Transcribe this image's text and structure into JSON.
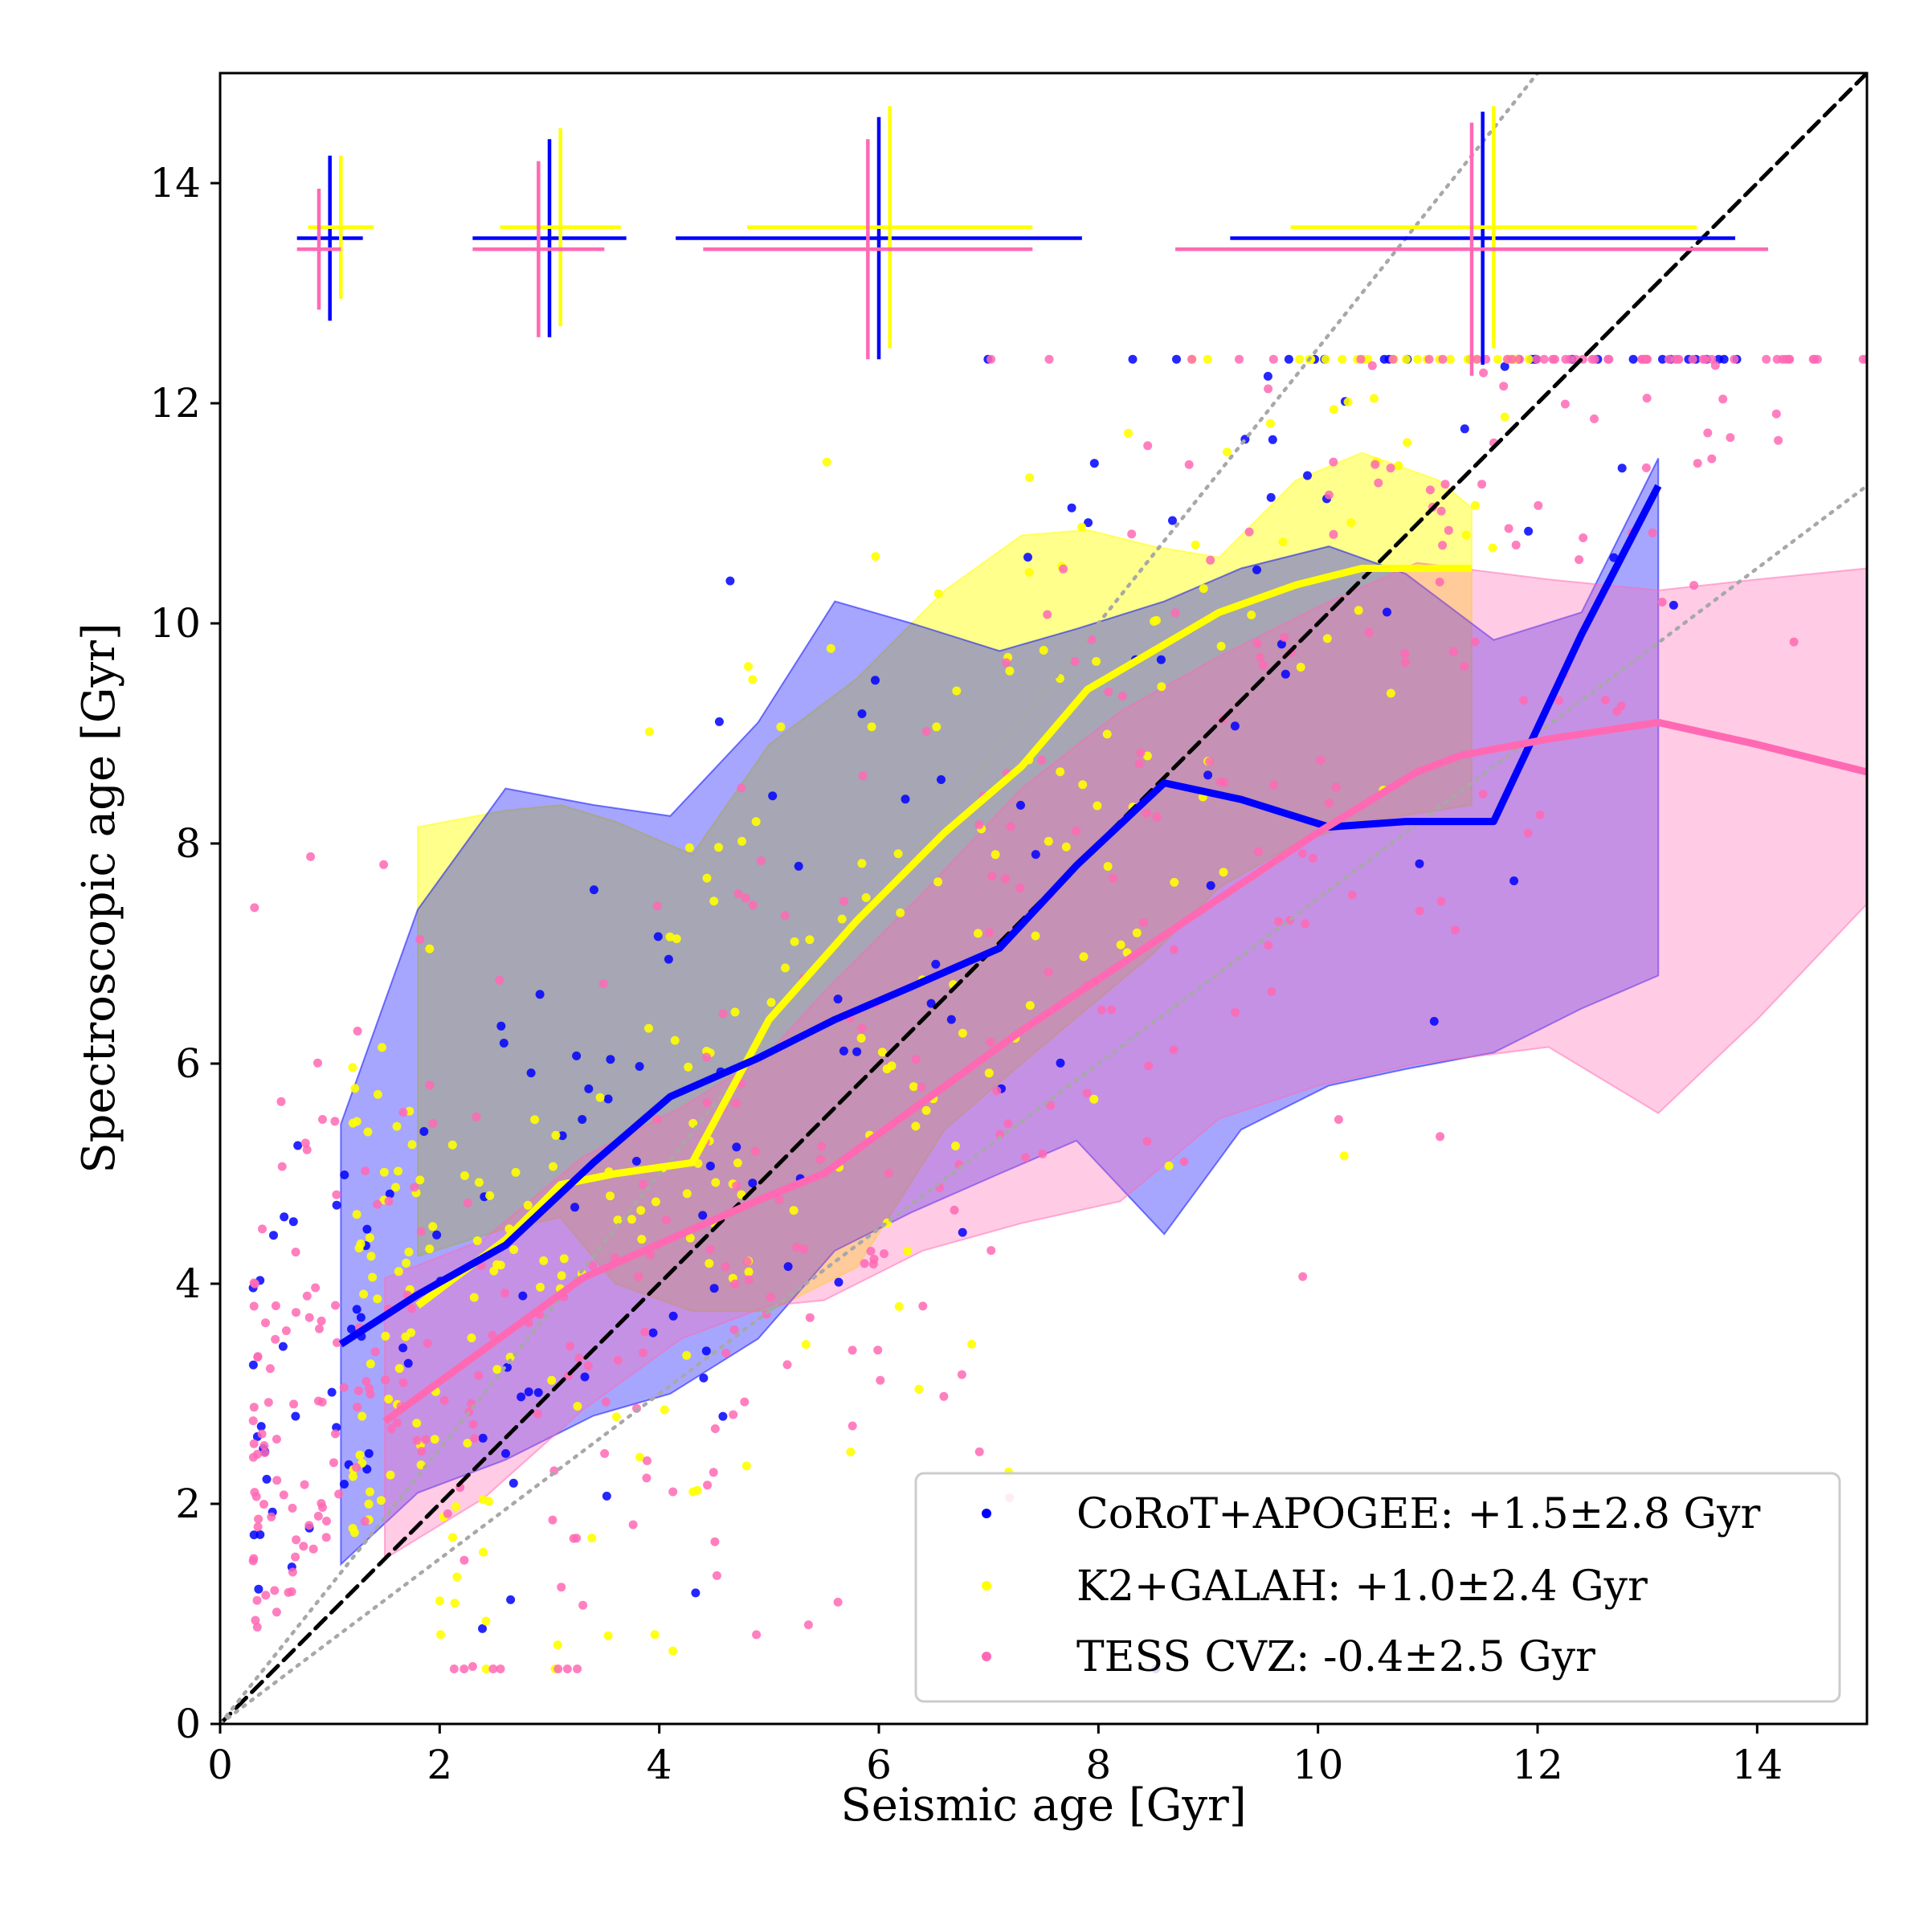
{
  "chart_data": {
    "type": "scatter",
    "title": "",
    "xlabel": "Seismic age [Gyr]",
    "ylabel": "Spectroscopic age [Gyr]",
    "xlim": [
      0,
      15
    ],
    "ylim": [
      0,
      15
    ],
    "xticks": [
      0,
      2,
      4,
      6,
      8,
      10,
      12,
      14
    ],
    "yticks": [
      0,
      2,
      4,
      6,
      8,
      10,
      12,
      14
    ],
    "xtick_labels": [
      "0",
      "2",
      "4",
      "6",
      "8",
      "10",
      "12",
      "14"
    ],
    "ytick_labels": [
      "0",
      "2",
      "4",
      "6",
      "8",
      "10",
      "12",
      "14"
    ],
    "legend_position": "lower-right",
    "reference_lines": [
      {
        "name": "one-to-one",
        "style": "dashed",
        "color": "#000000",
        "slope": 1.0
      },
      {
        "name": "upper-bound",
        "style": "dotted",
        "color": "#a8a8a8",
        "slope": 1.25
      },
      {
        "name": "lower-bound",
        "style": "dotted",
        "color": "#a8a8a8",
        "slope": 0.75
      }
    ],
    "series": [
      {
        "name": "CoRoT+APOGEE",
        "legend_label": "CoRoT+APOGEE: +1.5±2.8 Gyr",
        "color": "#0000ff",
        "median_x": [
          1.1,
          1.8,
          2.6,
          3.4,
          4.1,
          4.9,
          5.6,
          6.3,
          7.1,
          7.8,
          8.6,
          9.3,
          10.1,
          10.8,
          11.6,
          12.4,
          13.1
        ],
        "median_y": [
          3.45,
          3.9,
          4.35,
          5.1,
          5.7,
          6.05,
          6.4,
          6.7,
          7.05,
          7.8,
          8.55,
          8.4,
          8.15,
          8.2,
          8.2,
          9.9,
          11.25
        ],
        "band_upper": [
          5.45,
          7.4,
          8.5,
          8.35,
          8.25,
          9.1,
          10.2,
          10.0,
          9.75,
          9.95,
          10.2,
          10.5,
          10.7,
          10.45,
          9.85,
          10.1,
          11.5
        ],
        "band_lower": [
          1.45,
          2.1,
          2.4,
          2.8,
          3.0,
          3.5,
          4.3,
          4.65,
          5.0,
          5.3,
          4.45,
          5.4,
          5.8,
          5.95,
          6.1,
          6.5,
          6.8
        ],
        "error_cross": [
          {
            "x": 1.0,
            "y": 13.5,
            "xerr": [
              0.3,
              0.3
            ],
            "yerr": [
              0.75,
              0.75
            ]
          },
          {
            "x": 3.0,
            "y": 13.5,
            "xerr": [
              0.7,
              0.7
            ],
            "yerr": [
              0.9,
              0.9
            ]
          },
          {
            "x": 6.0,
            "y": 13.5,
            "xerr": [
              1.85,
              1.85
            ],
            "yerr": [
              1.1,
              1.1
            ]
          },
          {
            "x": 11.5,
            "y": 13.5,
            "xerr": [
              2.3,
              2.3
            ],
            "yerr": [
              1.15,
              1.15
            ]
          }
        ]
      },
      {
        "name": "K2+GALAH",
        "legend_label": "K2+GALAH: +1.0±2.4 Gyr",
        "color": "#ffff00",
        "median_x": [
          1.8,
          2.6,
          3.1,
          3.6,
          4.3,
          5.0,
          5.8,
          6.6,
          7.3,
          7.9,
          8.5,
          9.1,
          9.8,
          10.4,
          11.1,
          11.4
        ],
        "median_y": [
          3.8,
          4.4,
          4.9,
          5.0,
          5.1,
          6.4,
          7.3,
          8.1,
          8.7,
          9.4,
          9.75,
          10.1,
          10.35,
          10.5,
          10.5,
          10.5
        ],
        "band_upper": [
          8.15,
          8.3,
          8.35,
          8.2,
          7.9,
          8.9,
          9.5,
          10.3,
          10.8,
          10.85,
          10.7,
          10.6,
          11.3,
          11.55,
          11.3,
          11.05
        ],
        "band_lower": [
          4.25,
          4.5,
          4.6,
          4.0,
          3.75,
          3.75,
          4.15,
          5.4,
          6.0,
          6.5,
          7.0,
          7.6,
          8.0,
          8.2,
          8.3,
          8.35
        ],
        "error_cross": [
          {
            "x": 1.1,
            "y": 13.6,
            "xerr": [
              0.3,
              0.3
            ],
            "yerr": [
              0.65,
              0.65
            ]
          },
          {
            "x": 3.1,
            "y": 13.6,
            "xerr": [
              0.55,
              0.55
            ],
            "yerr": [
              0.9,
              0.9
            ]
          },
          {
            "x": 6.1,
            "y": 13.6,
            "xerr": [
              1.3,
              1.3
            ],
            "yerr": [
              1.1,
              1.1
            ]
          },
          {
            "x": 11.6,
            "y": 13.6,
            "xerr": [
              1.85,
              1.85
            ],
            "yerr": [
              1.1,
              1.1
            ]
          }
        ]
      },
      {
        "name": "TESS CVZ",
        "legend_label": "TESS CVZ: -0.4±2.5 Gyr",
        "color": "#ff69b4",
        "median_x": [
          1.5,
          2.4,
          3.3,
          4.2,
          5.0,
          5.5,
          6.4,
          7.3,
          8.2,
          9.1,
          10.0,
          10.9,
          11.3,
          12.1,
          13.1,
          14.0,
          15.0
        ],
        "median_y": [
          2.75,
          3.4,
          4.05,
          4.45,
          4.8,
          5.0,
          5.65,
          6.3,
          6.9,
          7.5,
          8.1,
          8.65,
          8.8,
          8.95,
          9.1,
          8.9,
          8.65
        ],
        "band_upper": [
          4.05,
          4.4,
          5.15,
          5.6,
          6.1,
          6.65,
          7.55,
          8.5,
          9.2,
          9.7,
          10.15,
          10.55,
          10.5,
          10.4,
          10.3,
          10.4,
          10.5
        ],
        "band_lower": [
          1.5,
          2.05,
          2.85,
          3.5,
          3.8,
          3.85,
          4.3,
          4.55,
          4.75,
          5.5,
          5.8,
          6.0,
          6.05,
          6.15,
          5.55,
          6.4,
          7.45
        ],
        "error_cross": [
          {
            "x": 0.9,
            "y": 13.4,
            "xerr": [
              0.2,
              0.2
            ],
            "yerr": [
              0.55,
              0.55
            ]
          },
          {
            "x": 2.9,
            "y": 13.4,
            "xerr": [
              0.6,
              0.6
            ],
            "yerr": [
              0.8,
              0.8
            ]
          },
          {
            "x": 5.9,
            "y": 13.4,
            "xerr": [
              1.5,
              1.5
            ],
            "yerr": [
              1.0,
              1.0
            ]
          },
          {
            "x": 11.4,
            "y": 13.4,
            "xerr": [
              2.7,
              2.7
            ],
            "yerr": [
              1.15,
              1.15
            ]
          }
        ]
      }
    ]
  }
}
